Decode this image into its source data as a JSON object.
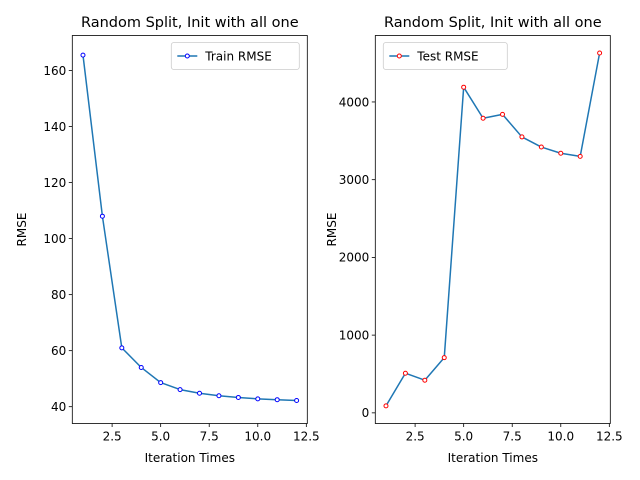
{
  "chart_data": [
    {
      "type": "line",
      "title": "Random Split, Init with all one",
      "xlabel": "Iteration Times",
      "ylabel": "RMSE",
      "xlim": [
        0.45,
        12.55
      ],
      "ylim": [
        34.0,
        172.5
      ],
      "xticks": [
        2.5,
        5.0,
        7.5,
        10.0,
        12.5
      ],
      "xtick_labels": [
        "2.5",
        "5.0",
        "7.5",
        "10.0",
        "12.5"
      ],
      "yticks": [
        40,
        60,
        80,
        100,
        120,
        140,
        160
      ],
      "ytick_labels": [
        "40",
        "60",
        "80",
        "100",
        "120",
        "140",
        "160"
      ],
      "grid": false,
      "legend": "upper right",
      "line_color": "#1f77b4",
      "marker_edge_color": "#0000ff",
      "series": [
        {
          "name": "Train RMSE",
          "x": [
            1,
            2,
            3,
            4,
            5,
            6,
            7,
            8,
            9,
            10,
            11,
            12
          ],
          "y": [
            165.5,
            108.0,
            61.0,
            54.0,
            48.6,
            46.1,
            44.8,
            43.9,
            43.3,
            42.8,
            42.5,
            42.2
          ]
        }
      ]
    },
    {
      "type": "line",
      "title": "Random Split, Init with all one",
      "xlabel": "Iteration Times",
      "ylabel": "RMSE",
      "xlim": [
        0.45,
        12.55
      ],
      "ylim": [
        -137,
        4855
      ],
      "xticks": [
        2.5,
        5.0,
        7.5,
        10.0,
        12.5
      ],
      "xtick_labels": [
        "2.5",
        "5.0",
        "7.5",
        "10.0",
        "12.5"
      ],
      "yticks": [
        0,
        1000,
        2000,
        3000,
        4000
      ],
      "ytick_labels": [
        "0",
        "1000",
        "2000",
        "3000",
        "4000"
      ],
      "grid": false,
      "legend": "upper left",
      "line_color": "#1f77b4",
      "marker_edge_color": "#ff0000",
      "series": [
        {
          "name": "Test RMSE",
          "x": [
            1,
            2,
            3,
            4,
            5,
            6,
            7,
            8,
            9,
            10,
            11,
            12
          ],
          "y": [
            90,
            510,
            420,
            710,
            4190,
            3790,
            3840,
            3550,
            3420,
            3340,
            3300,
            4630
          ]
        }
      ]
    }
  ]
}
